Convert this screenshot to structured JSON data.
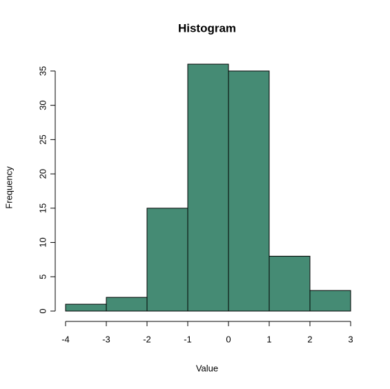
{
  "chart_data": {
    "type": "histogram",
    "title": "Histogram",
    "x_label": "Value",
    "y_label": "Frequency",
    "bins": [
      -4,
      -3,
      -2,
      -1,
      0,
      1,
      2,
      3
    ],
    "counts": [
      1,
      2,
      15,
      36,
      35,
      8,
      3
    ],
    "color": "#458b74",
    "xlim": [
      -4,
      3
    ],
    "xticks": [
      -4,
      -3,
      -2,
      -1,
      0,
      1,
      2,
      3
    ],
    "ylim": [
      0,
      36
    ],
    "yticks": [
      0,
      5,
      10,
      15,
      20,
      25,
      30,
      35
    ]
  }
}
